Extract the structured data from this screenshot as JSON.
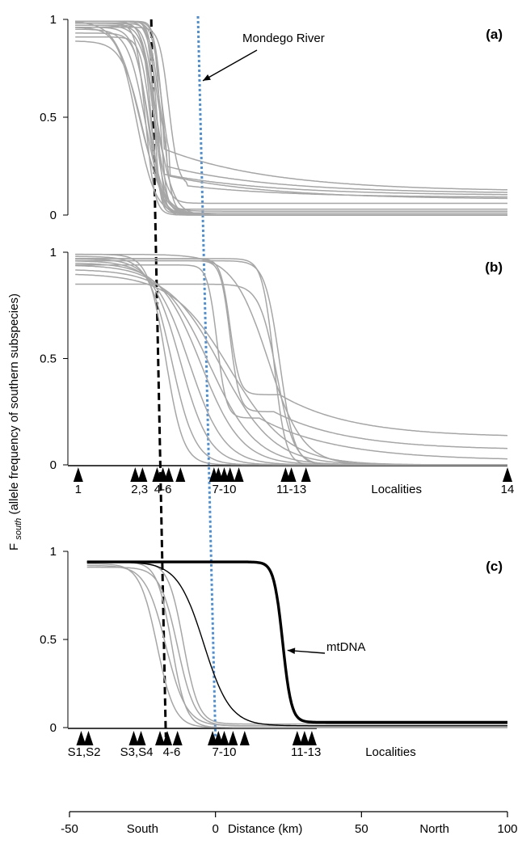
{
  "chart_data": {
    "type": "line",
    "y_axis_label": {
      "main": "F",
      "sub": "south",
      "rest": " (allele frequency of southern subspecies)"
    },
    "x_axis": {
      "ticks": [
        {
          "value": -50,
          "label": "-50"
        },
        {
          "value": 0,
          "label": "0"
        },
        {
          "value": 50,
          "label": "50"
        },
        {
          "value": 100,
          "label": "100"
        }
      ],
      "range": [
        -50,
        100
      ],
      "texts": [
        {
          "label": "South",
          "value": -25
        },
        {
          "label": "Distance (km)",
          "value": 17
        },
        {
          "label": "North",
          "value": 75
        }
      ]
    },
    "y_ticks": [
      {
        "value": 0,
        "label": "0"
      },
      {
        "value": 0.5,
        "label": "0.5"
      },
      {
        "value": 1,
        "label": "1"
      }
    ],
    "reference_lines": {
      "black_dashed": {
        "style": "dashed",
        "color": "#000000",
        "x_top": -22,
        "x_bottom": -17
      },
      "blue_dotted": {
        "style": "dotted",
        "color": "#4a90d9",
        "x_top": -6,
        "x_bottom": 0
      }
    },
    "panels": [
      {
        "label": "(a)",
        "annotation": {
          "text": "Mondego River",
          "points_to_x": -6,
          "points_to_y": 0.67
        },
        "series_style": {
          "color": "#a6a6a6"
        },
        "curves": [
          {
            "top": 0.99,
            "bottom": 0.01,
            "center": -21,
            "width": 1.0
          },
          {
            "top": 0.99,
            "bottom": 0.0,
            "center": -20,
            "width": 1.2
          },
          {
            "top": 0.98,
            "bottom": 0.01,
            "center": -22,
            "width": 1.5
          },
          {
            "top": 0.97,
            "bottom": 0.0,
            "center": -21,
            "width": 2.0
          },
          {
            "top": 0.96,
            "bottom": 0.02,
            "center": -23,
            "width": 2.5
          },
          {
            "top": 0.95,
            "bottom": 0.0,
            "center": -24,
            "width": 3.0
          },
          {
            "top": 0.93,
            "bottom": 0.0,
            "center": -23,
            "width": 2.2
          },
          {
            "top": 0.91,
            "bottom": 0.01,
            "center": -22,
            "width": 1.8
          },
          {
            "top": 0.89,
            "bottom": 0.0,
            "center": -25,
            "width": 3.5
          },
          {
            "top": 0.99,
            "bottom": 0.0,
            "center": -26,
            "width": 4.0
          },
          {
            "top": 0.99,
            "bottom": 0.03,
            "center": -19,
            "width": 1.0
          },
          {
            "top": 0.99,
            "bottom": 0.01,
            "center": -18,
            "width": 1.4
          },
          {
            "top": 0.98,
            "bottom": 0.0,
            "center": -24,
            "width": 1.6
          },
          {
            "top": 0.99,
            "bottom": 0.06,
            "center": -21,
            "width": 2.0
          },
          {
            "top": 0.97,
            "bottom": 0.0,
            "center": -20,
            "width": 2.8
          },
          {
            "top": 0.96,
            "bottom": 0.0,
            "center": -27,
            "width": 3.2
          }
        ],
        "two_stage_curves": [
          {
            "start": -23,
            "start_y": 0.99,
            "mid_x": -18,
            "mid_y": 0.34,
            "end_y": 0.12
          },
          {
            "start": -22,
            "start_y": 0.98,
            "mid_x": -17,
            "mid_y": 0.25,
            "end_y": 0.11
          },
          {
            "start": -24,
            "start_y": 0.97,
            "mid_x": -18,
            "mid_y": 0.21,
            "end_y": 0.1
          },
          {
            "start": -21,
            "start_y": 0.99,
            "mid_x": -16,
            "mid_y": 0.2,
            "end_y": 0.08
          },
          {
            "start": -22,
            "start_y": 0.96,
            "mid_x": -10,
            "mid_y": 0.15,
            "end_y": 0.09
          }
        ]
      },
      {
        "label": "(b)",
        "series_style": {
          "color": "#a6a6a6"
        },
        "curves": [
          {
            "top": 0.99,
            "bottom": 0.0,
            "center": -17,
            "width": 3.0
          },
          {
            "top": 0.98,
            "bottom": 0.0,
            "center": -15,
            "width": 4.0
          },
          {
            "top": 0.97,
            "bottom": 0.0,
            "center": -12,
            "width": 5.0
          },
          {
            "top": 0.96,
            "bottom": 0.0,
            "center": -9,
            "width": 6.0
          },
          {
            "top": 0.95,
            "bottom": 0.0,
            "center": -5,
            "width": 7.0
          },
          {
            "top": 0.94,
            "bottom": 0.0,
            "center": -2,
            "width": 8.0
          },
          {
            "top": 0.92,
            "bottom": 0.0,
            "center": 2,
            "width": 9.0
          },
          {
            "top": 0.9,
            "bottom": 0.0,
            "center": 5,
            "width": 10.0
          },
          {
            "top": 0.85,
            "bottom": 0.0,
            "center": 21,
            "width": 3.0
          },
          {
            "top": 0.97,
            "bottom": 0.0,
            "center": 20,
            "width": 2.0
          },
          {
            "top": 0.96,
            "bottom": 0.0,
            "center": 22,
            "width": 2.5
          },
          {
            "top": 0.99,
            "bottom": 0.0,
            "center": 18,
            "width": 6.0
          }
        ],
        "two_stage_curves": [
          {
            "start": -12,
            "start_y": 0.97,
            "mid_x": 22,
            "mid_y": 0.33,
            "end_y": 0.13
          },
          {
            "start": -10,
            "start_y": 0.96,
            "mid_x": 20,
            "mid_y": 0.25,
            "end_y": 0.07
          },
          {
            "start": -14,
            "start_y": 0.94,
            "mid_x": 15,
            "mid_y": 0.22,
            "end_y": 0.02
          }
        ],
        "localities": {
          "positions": [
            -47,
            -27.5,
            -25,
            -20,
            -18,
            -16,
            -12,
            -0.5,
            1,
            3,
            5,
            8,
            24,
            26,
            31,
            100
          ],
          "labels": [
            {
              "text": "1",
              "x": -47
            },
            {
              "text": "2,3",
              "x": -26
            },
            {
              "text": "4-6",
              "x": -18
            },
            {
              "text": "7-10",
              "x": 3
            },
            {
              "text": "11-13",
              "x": 26
            },
            {
              "text": "Localities",
              "x": 62
            },
            {
              "text": "14",
              "x": 100
            }
          ]
        }
      },
      {
        "label": "(c)",
        "annotation": {
          "text": "mtDNA",
          "points_to_x": 23,
          "points_to_y": 0.42
        },
        "series_style": {
          "color": "#a6a6a6"
        },
        "curves": [
          {
            "top": 0.94,
            "bottom": 0.0,
            "center": -15,
            "width": 2.5,
            "from": -44
          },
          {
            "top": 0.93,
            "bottom": 0.0,
            "center": -20,
            "width": 3.0,
            "from": -44
          },
          {
            "top": 0.92,
            "bottom": 0.01,
            "center": -17,
            "width": 3.5,
            "from": -44
          },
          {
            "top": 0.91,
            "bottom": 0.01,
            "center": -13,
            "width": 3.0,
            "from": -44
          },
          {
            "top": 0.94,
            "bottom": 0.02,
            "center": -11,
            "width": 2.6,
            "from": -44
          }
        ],
        "highlighted": [
          {
            "top": 0.94,
            "bottom": 0.01,
            "center": -4,
            "width": 4.5,
            "from": -44,
            "color": "#000000",
            "stroke": 1.4
          },
          {
            "top": 0.94,
            "bottom": 0.03,
            "center": 23,
            "width": 1.5,
            "from": -44,
            "color": "#000000",
            "stroke": 3.4
          }
        ],
        "localities": {
          "positions": [
            -46,
            -43.5,
            -28,
            -25.5,
            -19,
            -16.5,
            -13,
            -1,
            1,
            3,
            6,
            10,
            28,
            30.5,
            33
          ],
          "labels": [
            {
              "text": "S1,S2",
              "x": -45
            },
            {
              "text": "S3,S4",
              "x": -27
            },
            {
              "text": "4-6",
              "x": -15
            },
            {
              "text": "7-10",
              "x": 3
            },
            {
              "text": "11-13",
              "x": 31
            },
            {
              "text": "Localities",
              "x": 60
            }
          ]
        }
      }
    ]
  }
}
